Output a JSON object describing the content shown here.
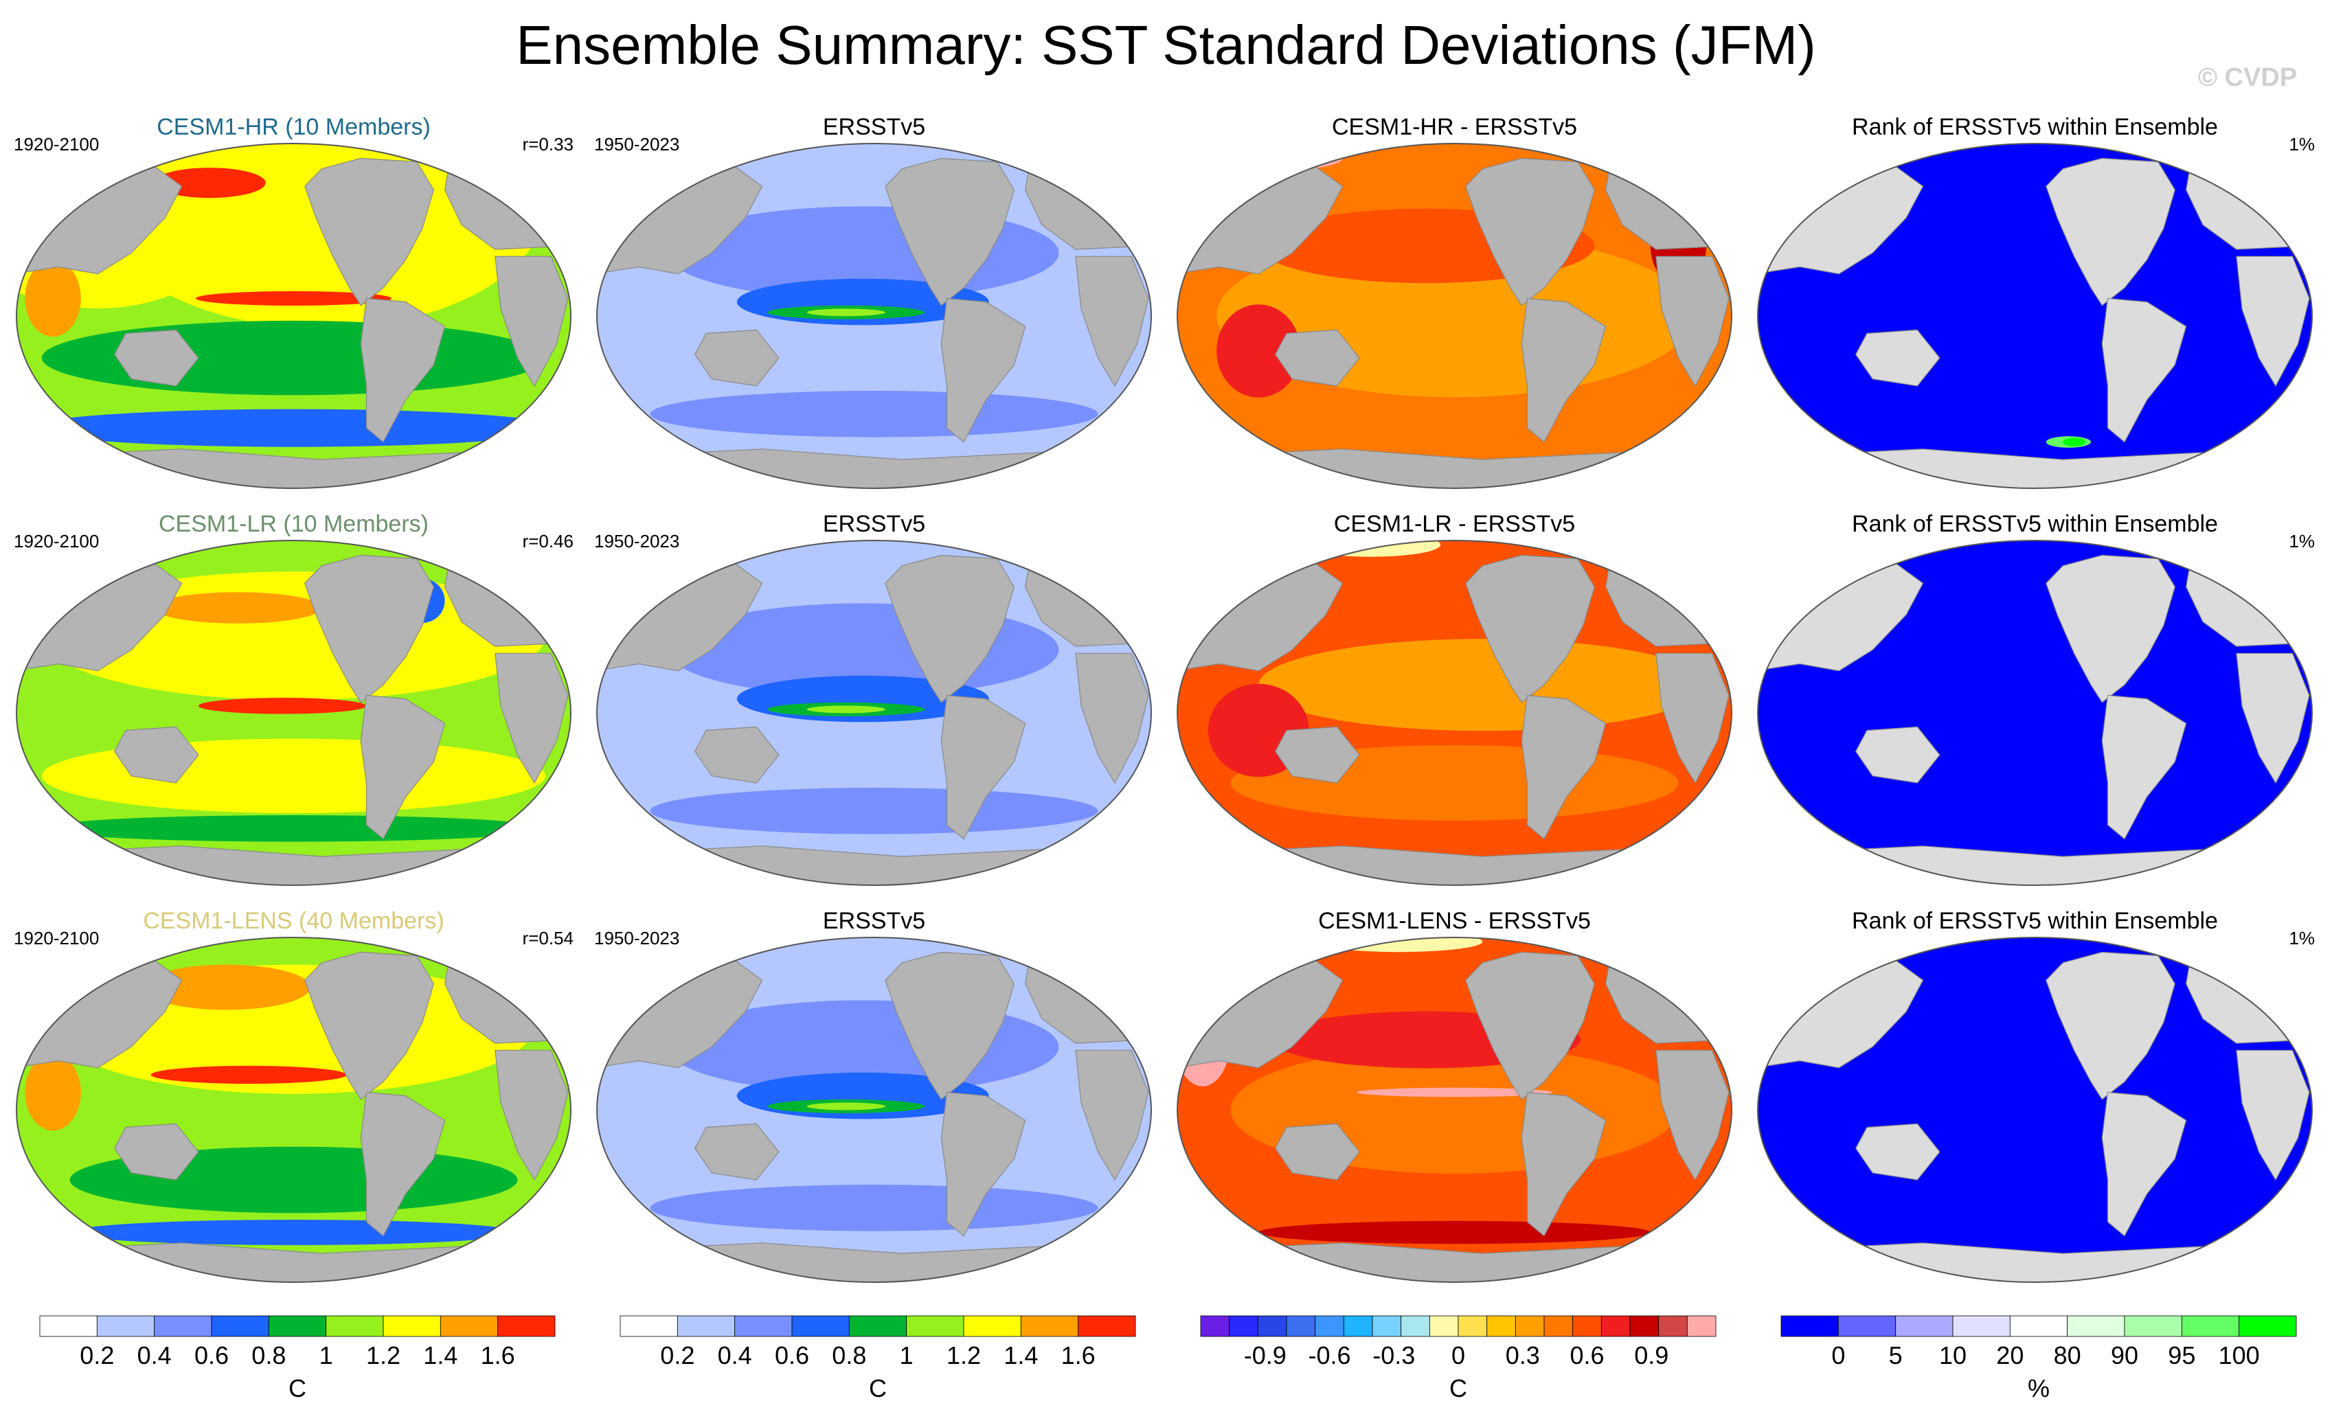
{
  "title": "Ensemble Summary: SST Standard Deviations (JFM)",
  "copyright": "© CVDP",
  "rows": [
    {
      "model": {
        "title": "CESM1-HR (10 Members)",
        "title_color": "#1f6a8a",
        "left": "1920-2100",
        "right": "r=0.33",
        "theme": "hr"
      },
      "obs": {
        "title": "ERSSTv5",
        "left": "1950-2023",
        "theme": "obs"
      },
      "diff": {
        "title": "CESM1-HR - ERSSTv5",
        "theme": "diff_hr"
      },
      "rank": {
        "title": "Rank of ERSSTv5 within Ensemble",
        "right": "1%",
        "theme": "rank_hr"
      }
    },
    {
      "model": {
        "title": "CESM1-LR (10 Members)",
        "title_color": "#6b8f6b",
        "left": "1920-2100",
        "right": "r=0.46",
        "theme": "lr"
      },
      "obs": {
        "title": "ERSSTv5",
        "left": "1950-2023",
        "theme": "obs"
      },
      "diff": {
        "title": "CESM1-LR - ERSSTv5",
        "theme": "diff_lr"
      },
      "rank": {
        "title": "Rank of ERSSTv5 within Ensemble",
        "right": "1%",
        "theme": "rank_lr"
      }
    },
    {
      "model": {
        "title": "CESM1-LENS (40 Members)",
        "title_color": "#d9c978",
        "left": "1920-2100",
        "right": "r=0.54",
        "theme": "lens"
      },
      "obs": {
        "title": "ERSSTv5",
        "left": "1950-2023",
        "theme": "obs"
      },
      "diff": {
        "title": "CESM1-LENS - ERSSTv5",
        "theme": "diff_lens"
      },
      "rank": {
        "title": "Rank of ERSSTv5 within Ensemble",
        "right": "1%",
        "theme": "rank_lens"
      }
    }
  ],
  "colorbars": [
    {
      "unit": "C",
      "labels": [
        "0.2",
        "0.4",
        "0.6",
        "0.8",
        "1",
        "1.2",
        "1.4",
        "1.6"
      ],
      "colors": [
        "#ffffff",
        "#b4c8ff",
        "#7890ff",
        "#1e64ff",
        "#00b432",
        "#96f01e",
        "#ffff00",
        "#ffa000",
        "#ff2800"
      ]
    },
    {
      "unit": "C",
      "labels": [
        "0.2",
        "0.4",
        "0.6",
        "0.8",
        "1",
        "1.2",
        "1.4",
        "1.6"
      ],
      "colors": [
        "#ffffff",
        "#b4c8ff",
        "#7890ff",
        "#1e64ff",
        "#00b432",
        "#96f01e",
        "#ffff00",
        "#ffa000",
        "#ff2800"
      ]
    },
    {
      "unit": "C",
      "labels": [
        "-0.9",
        "-0.6",
        "-0.3",
        "0",
        "0.3",
        "0.6",
        "0.9"
      ],
      "colors": [
        "#6a1ee6",
        "#2828ff",
        "#2846e6",
        "#3c6ef0",
        "#3c96ff",
        "#1eb4ff",
        "#78d2ff",
        "#aae6f0",
        "#fffaaa",
        "#ffe150",
        "#ffc400",
        "#ffa000",
        "#ff7800",
        "#ff5000",
        "#f01e1e",
        "#c80000",
        "#d24646",
        "#ffaaaa"
      ]
    },
    {
      "unit": "%",
      "labels": [
        "0",
        "5",
        "10",
        "20",
        "80",
        "90",
        "95",
        "100"
      ],
      "colors": [
        "#0000ff",
        "#6464ff",
        "#aaaaff",
        "#e1e1ff",
        "#ffffff",
        "#e1ffe1",
        "#aaffaa",
        "#64ff64",
        "#00ff00"
      ]
    }
  ],
  "chart_data": [
    {
      "type": "heatmap",
      "title": "CESM1-HR (10 Members)",
      "period": "1920-2100",
      "pattern_correlation": 0.33,
      "units": "C",
      "levels": [
        0.2,
        0.4,
        0.6,
        0.8,
        1,
        1.2,
        1.4,
        1.6
      ]
    },
    {
      "type": "heatmap",
      "title": "ERSSTv5",
      "period": "1950-2023",
      "units": "C",
      "levels": [
        0.2,
        0.4,
        0.6,
        0.8,
        1,
        1.2,
        1.4,
        1.6
      ]
    },
    {
      "type": "heatmap",
      "title": "CESM1-HR - ERSSTv5",
      "units": "C",
      "levels": [
        -0.9,
        -0.6,
        -0.3,
        0,
        0.3,
        0.6,
        0.9
      ]
    },
    {
      "type": "heatmap",
      "title": "Rank of ERSSTv5 within Ensemble",
      "units": "%",
      "levels": [
        0,
        5,
        10,
        20,
        80,
        90,
        95,
        100
      ],
      "annotation": "1%"
    },
    {
      "type": "heatmap",
      "title": "CESM1-LR (10 Members)",
      "period": "1920-2100",
      "pattern_correlation": 0.46,
      "units": "C",
      "levels": [
        0.2,
        0.4,
        0.6,
        0.8,
        1,
        1.2,
        1.4,
        1.6
      ]
    },
    {
      "type": "heatmap",
      "title": "ERSSTv5",
      "period": "1950-2023",
      "units": "C",
      "levels": [
        0.2,
        0.4,
        0.6,
        0.8,
        1,
        1.2,
        1.4,
        1.6
      ]
    },
    {
      "type": "heatmap",
      "title": "CESM1-LR - ERSSTv5",
      "units": "C",
      "levels": [
        -0.9,
        -0.6,
        -0.3,
        0,
        0.3,
        0.6,
        0.9
      ]
    },
    {
      "type": "heatmap",
      "title": "Rank of ERSSTv5 within Ensemble",
      "units": "%",
      "levels": [
        0,
        5,
        10,
        20,
        80,
        90,
        95,
        100
      ],
      "annotation": "1%"
    },
    {
      "type": "heatmap",
      "title": "CESM1-LENS (40 Members)",
      "period": "1920-2100",
      "pattern_correlation": 0.54,
      "units": "C",
      "levels": [
        0.2,
        0.4,
        0.6,
        0.8,
        1,
        1.2,
        1.4,
        1.6
      ]
    },
    {
      "type": "heatmap",
      "title": "ERSSTv5",
      "period": "1950-2023",
      "units": "C",
      "levels": [
        0.2,
        0.4,
        0.6,
        0.8,
        1,
        1.2,
        1.4,
        1.6
      ]
    },
    {
      "type": "heatmap",
      "title": "CESM1-LENS - ERSSTv5",
      "units": "C",
      "levels": [
        -0.9,
        -0.6,
        -0.3,
        0,
        0.3,
        0.6,
        0.9
      ]
    },
    {
      "type": "heatmap",
      "title": "Rank of ERSSTv5 within Ensemble",
      "units": "%",
      "levels": [
        0,
        5,
        10,
        20,
        80,
        90,
        95,
        100
      ],
      "annotation": "1%"
    }
  ]
}
